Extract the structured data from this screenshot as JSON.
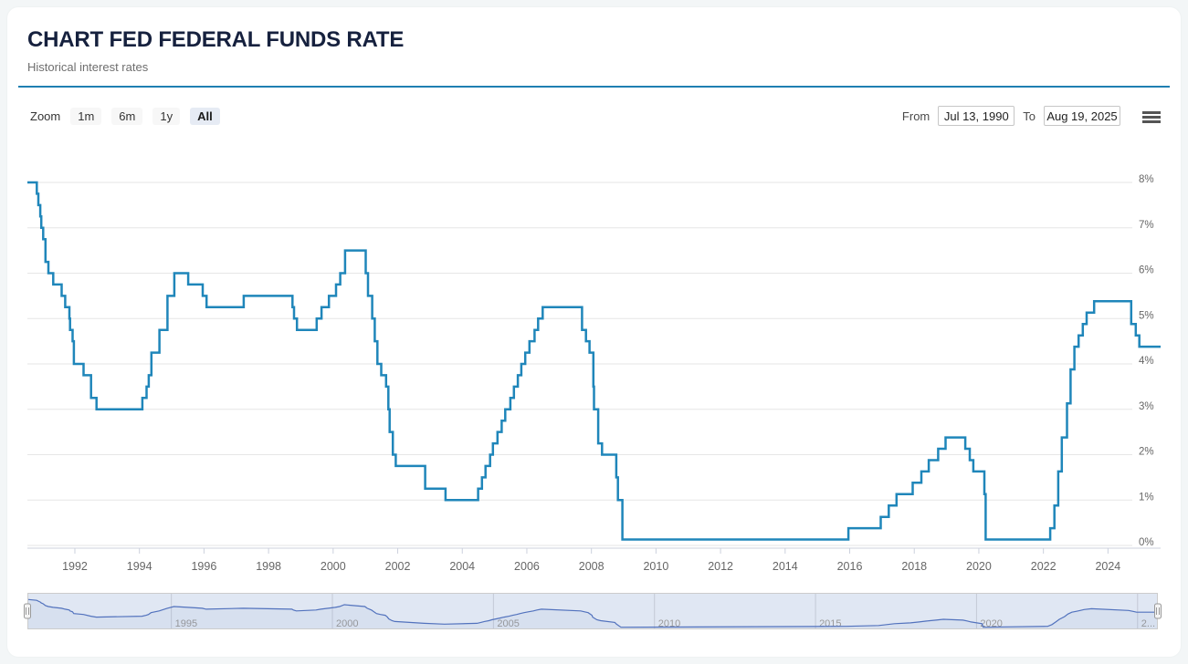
{
  "header": {
    "title": "CHART FED FEDERAL FUNDS RATE",
    "subtitle": "Historical interest rates"
  },
  "toolbar": {
    "zoom_label": "Zoom",
    "zoom_buttons": [
      {
        "label": "1m",
        "selected": false
      },
      {
        "label": "6m",
        "selected": false
      },
      {
        "label": "1y",
        "selected": false
      },
      {
        "label": "All",
        "selected": true
      }
    ],
    "from_label": "From",
    "from_value": "Jul 13, 1990",
    "to_label": "To",
    "to_value": "Aug 19, 2025",
    "menu_icon": "hamburger-menu-icon"
  },
  "colors": {
    "accent_divider": "#1f7fb2",
    "series_line": "#1f86ba",
    "grid_line": "#e6e6e6",
    "axis_line": "#ccd1dd",
    "axis_label": "#666666",
    "navigator_mask": "rgba(102,133,194,0.2)",
    "navigator_outline": "#cccccc",
    "navigator_grid": "#c3c9d6",
    "navigator_line": "#5272bd",
    "navigator_fill": "rgba(82,114,189,0.06)",
    "navigator_label": "#999999",
    "selected_button_bg": "#e6ebf4",
    "title_color": "#16213e"
  },
  "chart_data": {
    "type": "line",
    "step": true,
    "title": "CHART FED FEDERAL FUNDS RATE",
    "xlabel": "",
    "ylabel": "",
    "ylim": [
      0,
      8
    ],
    "x_range": [
      1990.53,
      2025.63
    ],
    "grid": true,
    "legend": false,
    "y_ticks": [
      {
        "value": 0,
        "label": "0%"
      },
      {
        "value": 1,
        "label": "1%"
      },
      {
        "value": 2,
        "label": "2%"
      },
      {
        "value": 3,
        "label": "3%"
      },
      {
        "value": 4,
        "label": "4%"
      },
      {
        "value": 5,
        "label": "5%"
      },
      {
        "value": 6,
        "label": "6%"
      },
      {
        "value": 7,
        "label": "7%"
      },
      {
        "value": 8,
        "label": "8%"
      }
    ],
    "x_ticks": [
      1992,
      1994,
      1996,
      1998,
      2000,
      2002,
      2004,
      2006,
      2008,
      2010,
      2012,
      2014,
      2016,
      2018,
      2020,
      2022,
      2024
    ],
    "series": [
      {
        "name": "Fed Federal Funds Rate",
        "color": "#1f86ba",
        "points": [
          [
            1990.53,
            8.0
          ],
          [
            1990.82,
            7.75
          ],
          [
            1990.87,
            7.5
          ],
          [
            1990.93,
            7.25
          ],
          [
            1990.96,
            7.0
          ],
          [
            1991.02,
            6.75
          ],
          [
            1991.09,
            6.25
          ],
          [
            1991.18,
            6.0
          ],
          [
            1991.33,
            5.75
          ],
          [
            1991.59,
            5.5
          ],
          [
            1991.7,
            5.25
          ],
          [
            1991.83,
            5.0
          ],
          [
            1991.85,
            4.75
          ],
          [
            1991.93,
            4.5
          ],
          [
            1991.97,
            4.0
          ],
          [
            1992.27,
            3.75
          ],
          [
            1992.5,
            3.25
          ],
          [
            1992.67,
            3.0
          ],
          [
            1994.09,
            3.25
          ],
          [
            1994.22,
            3.5
          ],
          [
            1994.29,
            3.75
          ],
          [
            1994.37,
            4.25
          ],
          [
            1994.62,
            4.75
          ],
          [
            1994.87,
            5.5
          ],
          [
            1995.08,
            6.0
          ],
          [
            1995.51,
            5.75
          ],
          [
            1995.96,
            5.5
          ],
          [
            1996.08,
            5.25
          ],
          [
            1997.23,
            5.5
          ],
          [
            1998.74,
            5.25
          ],
          [
            1998.79,
            5.0
          ],
          [
            1998.88,
            4.75
          ],
          [
            1999.49,
            5.0
          ],
          [
            1999.64,
            5.25
          ],
          [
            1999.87,
            5.5
          ],
          [
            2000.09,
            5.75
          ],
          [
            2000.22,
            6.0
          ],
          [
            2000.37,
            6.5
          ],
          [
            2001.01,
            6.0
          ],
          [
            2001.08,
            5.5
          ],
          [
            2001.21,
            5.0
          ],
          [
            2001.29,
            4.5
          ],
          [
            2001.37,
            4.0
          ],
          [
            2001.49,
            3.75
          ],
          [
            2001.64,
            3.5
          ],
          [
            2001.71,
            3.0
          ],
          [
            2001.75,
            2.5
          ],
          [
            2001.85,
            2.0
          ],
          [
            2001.94,
            1.75
          ],
          [
            2002.85,
            1.25
          ],
          [
            2003.48,
            1.0
          ],
          [
            2004.49,
            1.25
          ],
          [
            2004.61,
            1.5
          ],
          [
            2004.72,
            1.75
          ],
          [
            2004.86,
            2.0
          ],
          [
            2004.95,
            2.25
          ],
          [
            2005.09,
            2.5
          ],
          [
            2005.22,
            2.75
          ],
          [
            2005.33,
            3.0
          ],
          [
            2005.49,
            3.25
          ],
          [
            2005.6,
            3.5
          ],
          [
            2005.72,
            3.75
          ],
          [
            2005.83,
            4.0
          ],
          [
            2005.95,
            4.25
          ],
          [
            2006.08,
            4.5
          ],
          [
            2006.24,
            4.75
          ],
          [
            2006.35,
            5.0
          ],
          [
            2006.49,
            5.25
          ],
          [
            2007.71,
            4.75
          ],
          [
            2007.83,
            4.5
          ],
          [
            2007.94,
            4.25
          ],
          [
            2008.06,
            3.5
          ],
          [
            2008.08,
            3.0
          ],
          [
            2008.21,
            2.25
          ],
          [
            2008.33,
            2.0
          ],
          [
            2008.77,
            1.5
          ],
          [
            2008.82,
            1.0
          ],
          [
            2008.96,
            0.13
          ],
          [
            2015.96,
            0.38
          ],
          [
            2016.96,
            0.63
          ],
          [
            2017.21,
            0.88
          ],
          [
            2017.45,
            1.13
          ],
          [
            2017.95,
            1.38
          ],
          [
            2018.22,
            1.63
          ],
          [
            2018.45,
            1.88
          ],
          [
            2018.74,
            2.13
          ],
          [
            2018.97,
            2.38
          ],
          [
            2019.58,
            2.13
          ],
          [
            2019.72,
            1.88
          ],
          [
            2019.83,
            1.63
          ],
          [
            2020.17,
            1.13
          ],
          [
            2020.21,
            0.13
          ],
          [
            2022.21,
            0.38
          ],
          [
            2022.34,
            0.88
          ],
          [
            2022.46,
            1.63
          ],
          [
            2022.57,
            2.38
          ],
          [
            2022.73,
            3.13
          ],
          [
            2022.84,
            3.88
          ],
          [
            2022.96,
            4.38
          ],
          [
            2023.09,
            4.63
          ],
          [
            2023.22,
            4.88
          ],
          [
            2023.34,
            5.13
          ],
          [
            2023.57,
            5.38
          ],
          [
            2024.72,
            4.88
          ],
          [
            2024.86,
            4.63
          ],
          [
            2024.97,
            4.38
          ],
          [
            2025.63,
            4.38
          ]
        ]
      }
    ],
    "navigator": {
      "tick_labels": [
        {
          "year": 1995,
          "label": "1995"
        },
        {
          "year": 2000,
          "label": "2000"
        },
        {
          "year": 2005,
          "label": "2005"
        },
        {
          "year": 2010,
          "label": "2010"
        },
        {
          "year": 2015,
          "label": "2015"
        },
        {
          "year": 2020,
          "label": "2020"
        },
        {
          "year": 2025,
          "label": "2..."
        }
      ]
    }
  }
}
